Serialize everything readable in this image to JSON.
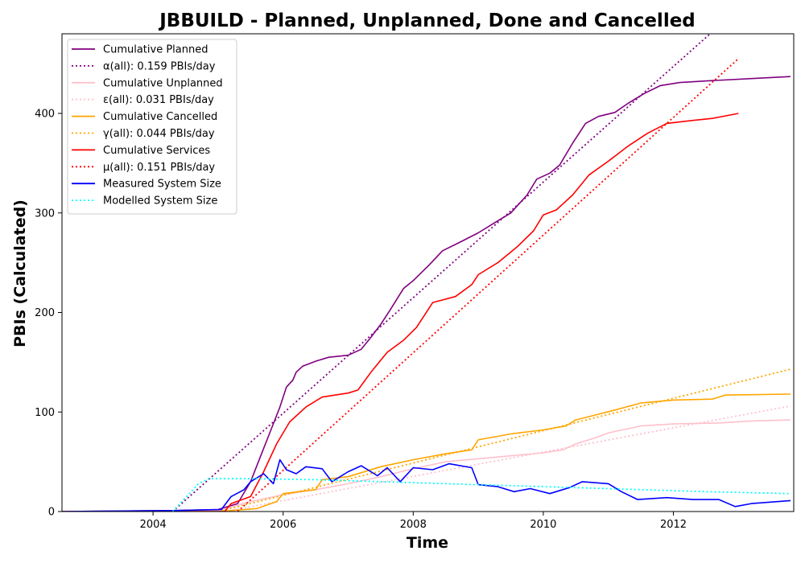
{
  "chart_data": {
    "type": "line",
    "title": "JBBUILD - Planned, Unplanned, Done  and Cancelled",
    "xlabel": "Time",
    "ylabel": "PBIs (Calculated)",
    "xlim": [
      2002.6,
      2013.85
    ],
    "ylim": [
      0,
      480
    ],
    "x_ticks": [
      2004,
      2006,
      2008,
      2010,
      2012
    ],
    "y_ticks": [
      0,
      100,
      200,
      300,
      400
    ],
    "grid": false,
    "legend_position": "top-left",
    "series": [
      {
        "name": "Cumulative Planned",
        "color": "#800080",
        "style": "solid",
        "points": [
          [
            2002.6,
            0
          ],
          [
            2004.3,
            1
          ],
          [
            2005.0,
            2
          ],
          [
            2005.3,
            8
          ],
          [
            2005.5,
            30
          ],
          [
            2005.65,
            55
          ],
          [
            2005.8,
            80
          ],
          [
            2005.95,
            105
          ],
          [
            2006.05,
            125
          ],
          [
            2006.15,
            132
          ],
          [
            2006.2,
            140
          ],
          [
            2006.3,
            146
          ],
          [
            2006.5,
            151
          ],
          [
            2006.7,
            155
          ],
          [
            2007.0,
            157
          ],
          [
            2007.2,
            163
          ],
          [
            2007.35,
            175
          ],
          [
            2007.5,
            188
          ],
          [
            2007.65,
            203
          ],
          [
            2007.85,
            224
          ],
          [
            2008.0,
            232
          ],
          [
            2008.25,
            248
          ],
          [
            2008.45,
            262
          ],
          [
            2008.7,
            270
          ],
          [
            2009.0,
            280
          ],
          [
            2009.25,
            290
          ],
          [
            2009.5,
            300
          ],
          [
            2009.75,
            318
          ],
          [
            2009.9,
            334
          ],
          [
            2010.1,
            340
          ],
          [
            2010.25,
            348
          ],
          [
            2010.45,
            370
          ],
          [
            2010.65,
            390
          ],
          [
            2010.85,
            397
          ],
          [
            2011.1,
            401
          ],
          [
            2011.3,
            410
          ],
          [
            2011.55,
            420
          ],
          [
            2011.8,
            428
          ],
          [
            2012.1,
            431
          ],
          [
            2012.6,
            433
          ],
          [
            2013.2,
            435
          ],
          [
            2013.8,
            437
          ]
        ]
      },
      {
        "name": "α(all): 0.159 PBIs/day",
        "color": "#800080",
        "style": "dotted",
        "points": [
          [
            2004.3,
            0
          ],
          [
            2012.6,
            482
          ]
        ]
      },
      {
        "name": "Cumulative Unplanned",
        "color": "#ffc0cb",
        "style": "solid",
        "points": [
          [
            2002.6,
            0
          ],
          [
            2005.0,
            1
          ],
          [
            2005.5,
            10
          ],
          [
            2006.0,
            17
          ],
          [
            2006.5,
            22
          ],
          [
            2007.0,
            28
          ],
          [
            2007.5,
            35
          ],
          [
            2008.0,
            43
          ],
          [
            2008.5,
            50
          ],
          [
            2009.0,
            53
          ],
          [
            2009.5,
            56
          ],
          [
            2010.0,
            59
          ],
          [
            2010.3,
            62
          ],
          [
            2010.5,
            68
          ],
          [
            2010.8,
            74
          ],
          [
            2011.0,
            79
          ],
          [
            2011.5,
            86
          ],
          [
            2012.0,
            88
          ],
          [
            2012.7,
            89
          ],
          [
            2013.2,
            91
          ],
          [
            2013.8,
            92
          ]
        ]
      },
      {
        "name": "ε(all): 0.031 PBIs/day",
        "color": "#ffc0cb",
        "style": "dotted",
        "points": [
          [
            2005.1,
            0
          ],
          [
            2013.8,
            106
          ]
        ]
      },
      {
        "name": "Cumulative Cancelled",
        "color": "#ffa500",
        "style": "solid",
        "points": [
          [
            2002.6,
            0
          ],
          [
            2005.0,
            0
          ],
          [
            2005.6,
            3
          ],
          [
            2005.9,
            10
          ],
          [
            2006.0,
            18
          ],
          [
            2006.5,
            22
          ],
          [
            2006.6,
            32
          ],
          [
            2007.0,
            35
          ],
          [
            2007.5,
            45
          ],
          [
            2008.0,
            52
          ],
          [
            2008.5,
            58
          ],
          [
            2008.9,
            62
          ],
          [
            2009.0,
            72
          ],
          [
            2009.5,
            78
          ],
          [
            2010.0,
            82
          ],
          [
            2010.35,
            86
          ],
          [
            2010.5,
            92
          ],
          [
            2010.8,
            97
          ],
          [
            2011.1,
            102
          ],
          [
            2011.5,
            109
          ],
          [
            2012.0,
            112
          ],
          [
            2012.6,
            113
          ],
          [
            2012.8,
            117
          ],
          [
            2013.8,
            118
          ]
        ]
      },
      {
        "name": "γ(all): 0.044 PBIs/day",
        "color": "#ffa500",
        "style": "dotted",
        "points": [
          [
            2005.0,
            0
          ],
          [
            2013.8,
            143
          ]
        ]
      },
      {
        "name": "Cumulative Services",
        "color": "#ff0000",
        "style": "solid",
        "points": [
          [
            2002.6,
            0
          ],
          [
            2005.1,
            0
          ],
          [
            2005.2,
            8
          ],
          [
            2005.5,
            15
          ],
          [
            2005.7,
            40
          ],
          [
            2005.9,
            68
          ],
          [
            2006.1,
            90
          ],
          [
            2006.35,
            105
          ],
          [
            2006.6,
            115
          ],
          [
            2007.0,
            119
          ],
          [
            2007.15,
            122
          ],
          [
            2007.35,
            140
          ],
          [
            2007.6,
            160
          ],
          [
            2007.85,
            172
          ],
          [
            2008.05,
            185
          ],
          [
            2008.3,
            210
          ],
          [
            2008.65,
            216
          ],
          [
            2008.9,
            228
          ],
          [
            2009.0,
            238
          ],
          [
            2009.3,
            250
          ],
          [
            2009.6,
            266
          ],
          [
            2009.85,
            282
          ],
          [
            2010.0,
            298
          ],
          [
            2010.2,
            303
          ],
          [
            2010.45,
            318
          ],
          [
            2010.7,
            338
          ],
          [
            2011.0,
            352
          ],
          [
            2011.3,
            367
          ],
          [
            2011.6,
            380
          ],
          [
            2011.9,
            390
          ],
          [
            2012.3,
            393
          ],
          [
            2012.6,
            395
          ],
          [
            2013.0,
            400
          ]
        ]
      },
      {
        "name": "μ(all): 0.151 PBIs/day",
        "color": "#ff0000",
        "style": "dotted",
        "points": [
          [
            2005.3,
            0
          ],
          [
            2013.0,
            455
          ]
        ]
      },
      {
        "name": "Measured System Size",
        "color": "#0000ff",
        "style": "solid",
        "points": [
          [
            2002.6,
            0
          ],
          [
            2004.3,
            1
          ],
          [
            2005.05,
            2
          ],
          [
            2005.2,
            15
          ],
          [
            2005.4,
            22
          ],
          [
            2005.5,
            30
          ],
          [
            2005.7,
            38
          ],
          [
            2005.85,
            28
          ],
          [
            2005.95,
            52
          ],
          [
            2006.05,
            42
          ],
          [
            2006.2,
            38
          ],
          [
            2006.35,
            45
          ],
          [
            2006.6,
            43
          ],
          [
            2006.75,
            30
          ],
          [
            2007.0,
            40
          ],
          [
            2007.2,
            46
          ],
          [
            2007.45,
            36
          ],
          [
            2007.6,
            44
          ],
          [
            2007.8,
            30
          ],
          [
            2008.0,
            44
          ],
          [
            2008.3,
            42
          ],
          [
            2008.55,
            48
          ],
          [
            2008.9,
            44
          ],
          [
            2009.0,
            27
          ],
          [
            2009.3,
            25
          ],
          [
            2009.55,
            20
          ],
          [
            2009.8,
            23
          ],
          [
            2010.1,
            18
          ],
          [
            2010.4,
            24
          ],
          [
            2010.6,
            30
          ],
          [
            2011.0,
            28
          ],
          [
            2011.2,
            20
          ],
          [
            2011.45,
            12
          ],
          [
            2011.9,
            14
          ],
          [
            2012.3,
            12
          ],
          [
            2012.7,
            12
          ],
          [
            2012.95,
            5
          ],
          [
            2013.2,
            8
          ],
          [
            2013.8,
            11
          ]
        ]
      },
      {
        "name": "Modelled System Size",
        "color": "#00ffff",
        "style": "dotted",
        "points": [
          [
            2004.3,
            0
          ],
          [
            2004.7,
            28
          ],
          [
            2004.85,
            33
          ],
          [
            2005.5,
            33
          ],
          [
            2006.5,
            32
          ],
          [
            2007.5,
            30
          ],
          [
            2008.5,
            28
          ],
          [
            2009.5,
            26
          ],
          [
            2010.5,
            24
          ],
          [
            2011.5,
            22
          ],
          [
            2012.5,
            20
          ],
          [
            2013.8,
            18
          ]
        ]
      }
    ]
  }
}
